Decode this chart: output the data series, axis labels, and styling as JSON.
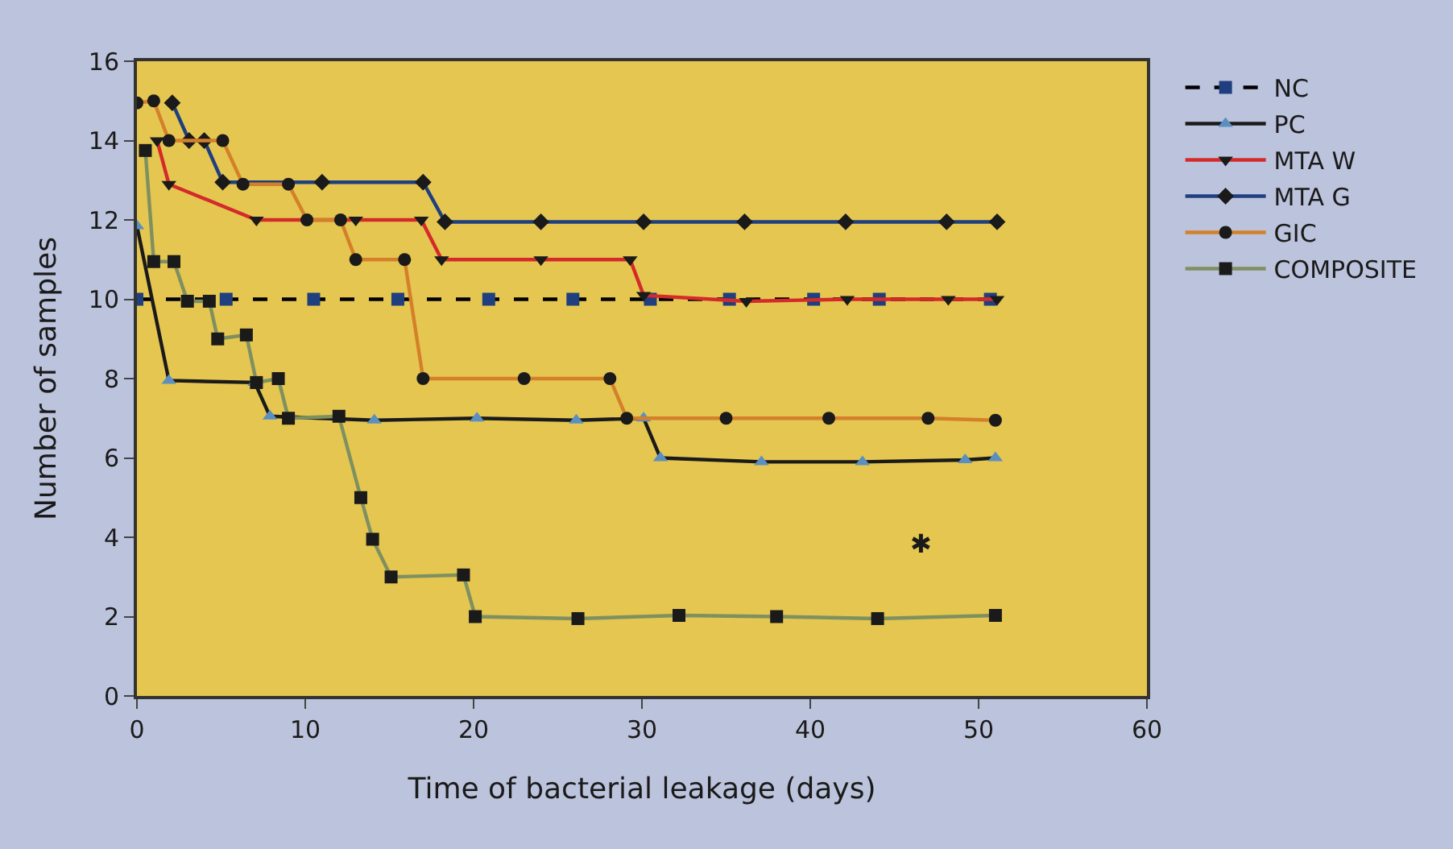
{
  "chart_data": {
    "type": "line",
    "xlabel": "Time of bacterial leakage (days)",
    "ylabel": "Number of samples",
    "xlim": [
      0,
      60
    ],
    "xticks": [
      0,
      10,
      20,
      30,
      40,
      50,
      60
    ],
    "ylim": [
      0,
      16
    ],
    "yticks": [
      0,
      2,
      4,
      6,
      8,
      10,
      12,
      14,
      16
    ],
    "grid": false,
    "legend": "right",
    "series": [
      {
        "name": "NC",
        "color": "#000000",
        "colors": [
          "#1f3f7f",
          "#1f3f7f",
          "#1f3f7f",
          "#1f3f7f",
          "#1f3f7f",
          "#1f3f7f",
          "#1f3f7f",
          "#1f3f7f",
          "#1f3f7f",
          "#1f3f7f",
          "#1f3f7f"
        ],
        "marker": "square",
        "line_style": "dashed",
        "x": [
          0,
          5.3,
          10.5,
          15.5,
          20.9,
          25.9,
          30.5,
          35.2,
          40.2,
          44.1,
          50.7
        ],
        "values": [
          10,
          10,
          10,
          10,
          10,
          10,
          10,
          10,
          10,
          10,
          10
        ]
      },
      {
        "name": "PC",
        "color": "#1a1a1a",
        "colors": [
          "#5b8fc0",
          "#5b8fc0",
          "#5b8fc0",
          "#5b8fc0",
          "#5b8fc0",
          "#5b8fc0",
          "#5b8fc0",
          "#5b8fc0",
          "#5b8fc0",
          "#5b8fc0",
          "#5b8fc0",
          "#5b8fc0",
          "#5b8fc0"
        ],
        "marker": "triangle",
        "line_style": "solid",
        "x": [
          0,
          1.9,
          7.0,
          7.9,
          14.1,
          20.2,
          26.1,
          30.1,
          31.1,
          37.1,
          43.1,
          49.2,
          51.0
        ],
        "values": [
          11.85,
          7.95,
          7.9,
          7.05,
          6.95,
          7.0,
          6.95,
          7.0,
          6.0,
          5.9,
          5.9,
          5.95,
          6.0
        ]
      },
      {
        "name": "MTA W",
        "color": "#d42a2a",
        "marker": "triangle-down",
        "line_style": "solid",
        "x": [
          1.2,
          1.9,
          7.1,
          13.0,
          16.9,
          18.1,
          24.0,
          29.3,
          30.1,
          36.2,
          42.2,
          48.2,
          51.1
        ],
        "values": [
          14.0,
          12.9,
          12.0,
          12.0,
          12.0,
          11.0,
          11.0,
          11.0,
          10.1,
          9.95,
          10.0,
          10.0,
          10.0
        ]
      },
      {
        "name": "MTA G",
        "color": "#1f3f7f",
        "marker": "diamond",
        "line_style": "solid",
        "x": [
          2.1,
          3.1,
          4.0,
          5.1,
          11.0,
          17.0,
          18.3,
          24.0,
          30.1,
          36.1,
          42.1,
          48.1,
          51.1
        ],
        "values": [
          14.95,
          14.0,
          14.0,
          12.95,
          12.95,
          12.95,
          11.95,
          11.95,
          11.95,
          11.95,
          11.95,
          11.95,
          11.95
        ]
      },
      {
        "name": "GIC",
        "color": "#d4802a",
        "marker": "circle",
        "line_style": "solid",
        "x": [
          0,
          1.0,
          1.9,
          5.1,
          6.3,
          9.0,
          10.1,
          12.1,
          13.0,
          15.9,
          17.0,
          23.0,
          28.1,
          29.1,
          35.0,
          41.1,
          47.0,
          51.0
        ],
        "values": [
          14.95,
          15.0,
          14.0,
          14.0,
          12.9,
          12.9,
          12.0,
          12.0,
          11.0,
          11.0,
          8.0,
          8.0,
          8.0,
          7.0,
          7.0,
          7.0,
          7.0,
          6.95
        ]
      },
      {
        "name": "COMPOSITE",
        "color": "#7f9060",
        "marker": "square",
        "line_style": "solid",
        "x": [
          0.5,
          1.0,
          2.2,
          3.0,
          4.3,
          4.8,
          6.5,
          7.1,
          8.4,
          9.0,
          12.0,
          13.3,
          14.0,
          15.1,
          19.4,
          20.1,
          26.2,
          32.2,
          38.0,
          44.0,
          51.0
        ],
        "values": [
          13.75,
          10.95,
          10.95,
          9.95,
          9.95,
          9.0,
          9.1,
          7.9,
          8.0,
          7.0,
          7.05,
          5.0,
          3.95,
          3.0,
          3.05,
          2.0,
          1.95,
          2.03,
          2.0,
          1.95,
          2.03
        ]
      }
    ],
    "annotations": [
      "✱"
    ]
  }
}
